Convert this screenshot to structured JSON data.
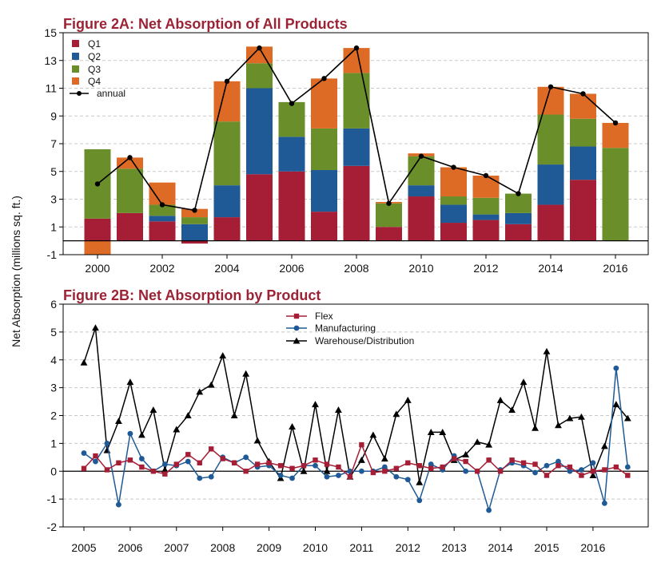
{
  "shared": {
    "ylabel": "Net Absorption (millions sq. ft.)"
  },
  "colors": {
    "q1": "#a51e36",
    "q2": "#1f5a96",
    "q3": "#6a8f2a",
    "q4": "#dd6b26",
    "annual": "#000000",
    "flex": "#a51e36",
    "manufacturing": "#1f5a96",
    "warehouse": "#000000",
    "title": "#9b2335"
  },
  "chart_data": [
    {
      "id": "fig2a",
      "type": "bar",
      "stacked": true,
      "title": "Figure 2A: Net Absorption of All Products",
      "xlabel": "",
      "ylabel": "Net Absorption (millions sq. ft.)",
      "ylim": [
        -1,
        15
      ],
      "yticks": [
        -1,
        1,
        3,
        5,
        7,
        9,
        11,
        13,
        15
      ],
      "categories": [
        "2000",
        "2001",
        "2002",
        "2003",
        "2004",
        "2005",
        "2006",
        "2007",
        "2008",
        "2009",
        "2010",
        "2011",
        "2012",
        "2013",
        "2014",
        "2015",
        "2016"
      ],
      "xtick_labels": [
        "2000",
        "2002",
        "2004",
        "2006",
        "2008",
        "2010",
        "2012",
        "2014",
        "2016"
      ],
      "legend_position": "top-left",
      "series": [
        {
          "name": "Q1",
          "color_key": "q1",
          "values": [
            1.6,
            2.0,
            1.4,
            -0.2,
            1.7,
            4.8,
            5.0,
            2.1,
            5.4,
            1.0,
            3.2,
            1.3,
            1.5,
            1.2,
            2.6,
            4.4,
            0.0
          ]
        },
        {
          "name": "Q2",
          "color_key": "q2",
          "values": [
            0.0,
            0.0,
            0.4,
            1.2,
            2.3,
            6.2,
            2.5,
            3.0,
            2.7,
            0.0,
            0.8,
            1.3,
            0.4,
            0.8,
            2.9,
            2.4,
            0.0
          ]
        },
        {
          "name": "Q3",
          "color_key": "q3",
          "values": [
            5.0,
            3.2,
            0.8,
            0.5,
            4.6,
            1.8,
            2.5,
            3.0,
            4.0,
            1.7,
            2.1,
            0.6,
            1.2,
            1.4,
            3.6,
            2.0,
            6.7
          ]
        },
        {
          "name": "Q4",
          "color_key": "q4",
          "values": [
            -1.0,
            0.8,
            1.6,
            0.6,
            2.9,
            1.2,
            0.0,
            3.6,
            1.8,
            0.1,
            0.2,
            2.1,
            1.6,
            0.0,
            2.0,
            1.8,
            1.8
          ]
        }
      ],
      "line": {
        "name": "annual",
        "color_key": "annual",
        "values": [
          4.1,
          6.0,
          2.6,
          2.2,
          11.5,
          13.9,
          9.9,
          11.7,
          13.9,
          2.7,
          6.1,
          5.3,
          4.7,
          3.4,
          11.1,
          10.6,
          8.5
        ]
      }
    },
    {
      "id": "fig2b",
      "type": "line",
      "title": "Figure 2B: Net Absorption by Product",
      "xlabel": "",
      "ylabel": "Net Absorption (millions sq. ft.)",
      "ylim": [
        -2,
        6
      ],
      "yticks": [
        -2,
        -1,
        0,
        1,
        2,
        3,
        4,
        5,
        6
      ],
      "xlim": [
        2004.9,
        2017.0
      ],
      "xtick_labels": [
        "2005",
        "2006",
        "2007",
        "2008",
        "2009",
        "2010",
        "2011",
        "2012",
        "2013",
        "2014",
        "2015",
        "2016"
      ],
      "x_start": 2005.0,
      "x_step": 0.25,
      "legend_position": "top-center",
      "series": [
        {
          "name": "Flex",
          "color_key": "flex",
          "marker": "square",
          "values": [
            0.1,
            0.55,
            0.05,
            0.3,
            0.4,
            0.15,
            0.0,
            -0.1,
            0.25,
            0.6,
            0.3,
            0.8,
            0.45,
            0.3,
            0.0,
            0.25,
            0.3,
            0.2,
            0.1,
            0.2,
            0.4,
            0.25,
            0.15,
            -0.2,
            0.95,
            -0.05,
            0.0,
            0.1,
            0.3,
            0.2,
            0.1,
            0.15,
            0.45,
            0.35,
            0.0,
            0.4,
            0.0,
            0.4,
            0.3,
            0.25,
            -0.15,
            0.2,
            0.15,
            -0.15,
            0.0,
            0.05,
            0.15,
            -0.15
          ]
        },
        {
          "name": "Manufacturing",
          "color_key": "manufacturing",
          "marker": "circle",
          "values": [
            0.65,
            0.35,
            1.0,
            -1.2,
            1.35,
            0.45,
            0.0,
            0.25,
            0.2,
            0.35,
            -0.25,
            -0.2,
            0.5,
            0.3,
            0.5,
            0.15,
            0.2,
            -0.15,
            -0.25,
            0.2,
            0.2,
            -0.2,
            -0.15,
            0.0,
            0.0,
            0.0,
            0.15,
            -0.2,
            -0.3,
            -1.05,
            0.25,
            0.05,
            0.55,
            0.0,
            0.0,
            -1.4,
            0.05,
            0.3,
            0.2,
            -0.05,
            0.2,
            0.35,
            0.0,
            0.05,
            0.3,
            -1.15,
            3.7,
            0.15
          ]
        },
        {
          "name": "Warehouse/Distribution",
          "color_key": "warehouse",
          "marker": "triangle",
          "values": [
            3.9,
            5.15,
            0.75,
            1.8,
            3.2,
            1.3,
            2.2,
            0.05,
            1.5,
            2.0,
            2.85,
            3.1,
            4.15,
            2.0,
            3.5,
            1.1,
            0.35,
            -0.25,
            1.6,
            0.0,
            2.4,
            0.0,
            2.2,
            -0.2,
            0.4,
            1.3,
            0.45,
            2.05,
            2.55,
            -0.4,
            1.4,
            1.4,
            0.4,
            0.6,
            1.05,
            0.95,
            2.55,
            2.2,
            3.2,
            1.55,
            4.3,
            1.65,
            1.9,
            1.95,
            -0.15,
            0.9,
            2.4,
            1.9
          ]
        }
      ]
    }
  ]
}
